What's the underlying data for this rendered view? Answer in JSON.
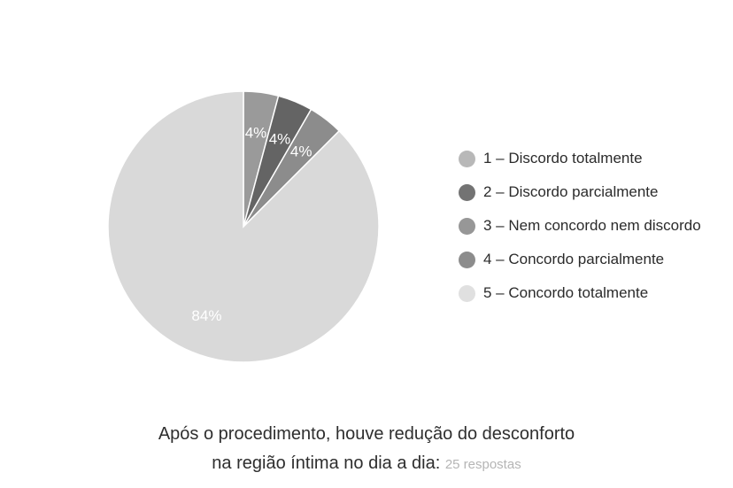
{
  "chart_data": {
    "type": "pie",
    "categories": [
      "1 – Discordo totalmente",
      "2 – Discordo parcialmente",
      "3 – Nem concordo nem discordo",
      "4 – Concordo parcialmente",
      "5 – Concordo totalmente"
    ],
    "values": [
      4,
      4,
      4,
      0,
      84
    ],
    "labels": [
      "4%",
      "4%",
      "4%",
      "",
      "84%"
    ],
    "colors": [
      "#9a9a9a",
      "#646464",
      "#8c8c8c",
      "#8f8f8f",
      "#d9d9d9"
    ],
    "legend_position": "right",
    "title_line1": "Após o procedimento, houve redução do desconforto",
    "title_line2": "na região íntima no dia a dia:",
    "responses": "25 respostas"
  },
  "legend_colors": [
    "#b8b8b8",
    "#737373",
    "#979797",
    "#8c8c8c",
    "#e0e0e0"
  ]
}
